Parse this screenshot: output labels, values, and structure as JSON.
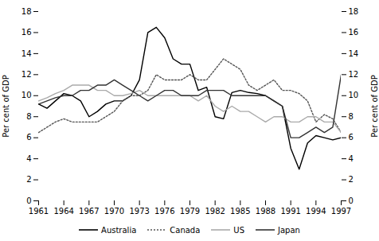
{
  "chart_data": {
    "type": "line",
    "x": [
      1961,
      1962,
      1963,
      1964,
      1965,
      1966,
      1967,
      1968,
      1969,
      1970,
      1971,
      1972,
      1973,
      1974,
      1975,
      1976,
      1977,
      1978,
      1979,
      1980,
      1981,
      1982,
      1983,
      1984,
      1985,
      1986,
      1987,
      1988,
      1989,
      1990,
      1991,
      1992,
      1993,
      1994,
      1995,
      1996,
      1997
    ],
    "series": [
      {
        "name": "Australia",
        "color": "#000000",
        "line_style": "solid",
        "values": [
          9.2,
          8.8,
          9.5,
          10.2,
          10.0,
          9.5,
          8.0,
          8.5,
          9.2,
          9.5,
          9.5,
          10.0,
          11.5,
          16.0,
          16.5,
          15.5,
          13.5,
          13.0,
          13.0,
          10.5,
          10.8,
          8.0,
          7.8,
          10.3,
          10.5,
          10.3,
          10.2,
          10.0,
          9.5,
          9.0,
          5.0,
          3.0,
          5.5,
          6.2,
          6.0,
          5.8,
          6.0
        ]
      },
      {
        "name": "Canada",
        "color": "#555555",
        "line_style": "dotted",
        "values": [
          6.5,
          7.0,
          7.5,
          7.8,
          7.5,
          7.5,
          7.5,
          7.5,
          8.0,
          8.5,
          9.5,
          10.0,
          10.0,
          10.5,
          12.0,
          11.5,
          11.5,
          11.5,
          12.0,
          11.5,
          11.5,
          12.5,
          13.5,
          13.0,
          12.5,
          11.0,
          10.5,
          11.0,
          11.5,
          10.5,
          10.5,
          10.2,
          9.5,
          7.5,
          8.2,
          7.8,
          6.5
        ]
      },
      {
        "name": "US",
        "color": "#aaaaaa",
        "line_style": "solid",
        "values": [
          9.5,
          9.8,
          10.2,
          10.5,
          11.0,
          11.0,
          11.0,
          10.5,
          10.5,
          10.0,
          10.0,
          10.2,
          10.5,
          10.0,
          10.0,
          10.0,
          10.0,
          10.0,
          10.0,
          9.5,
          10.0,
          9.0,
          8.5,
          9.0,
          8.5,
          8.5,
          8.0,
          7.5,
          8.0,
          8.0,
          7.5,
          7.5,
          8.0,
          8.0,
          7.5,
          7.5,
          6.5
        ]
      },
      {
        "name": "Japan",
        "color": "#333333",
        "line_style": "solid",
        "values": [
          9.2,
          9.5,
          9.8,
          10.0,
          10.0,
          10.5,
          10.5,
          11.0,
          11.0,
          11.5,
          11.0,
          10.5,
          10.0,
          9.5,
          10.0,
          10.5,
          10.5,
          10.0,
          10.0,
          10.0,
          10.5,
          10.5,
          10.5,
          10.0,
          10.0,
          10.0,
          10.0,
          10.0,
          9.5,
          9.0,
          6.0,
          6.0,
          6.5,
          7.0,
          6.5,
          7.0,
          12.0
        ]
      }
    ],
    "xlim": [
      1961,
      1997
    ],
    "xticks": [
      1961,
      1964,
      1967,
      1970,
      1973,
      1976,
      1979,
      1982,
      1985,
      1988,
      1991,
      1994,
      1997
    ],
    "ylim": [
      0,
      18
    ],
    "yticks": [
      0,
      2,
      4,
      6,
      8,
      10,
      12,
      14,
      16,
      18
    ],
    "y2lim": [
      0,
      18
    ],
    "y2ticks": [
      0,
      2,
      4,
      6,
      8,
      10,
      12,
      14,
      16,
      18
    ],
    "ylabel": "Per cent of GDP",
    "y2label": "Per cent of GDP",
    "legend": "bottom",
    "grid": false
  }
}
